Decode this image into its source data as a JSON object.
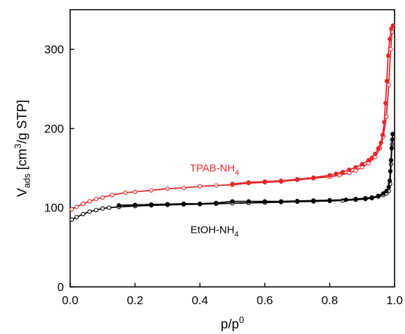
{
  "chart_data": {
    "type": "line",
    "title": "",
    "xlabel": {
      "base": "p/p",
      "sup": "0"
    },
    "ylabel": {
      "base": "V",
      "sub": "ads",
      "rest": " [cm",
      "sup": "3",
      "tail": "/g STP]"
    },
    "xlim": [
      0,
      1
    ],
    "ylim": [
      0,
      350
    ],
    "xticks": [
      0.0,
      0.2,
      0.4,
      0.6,
      0.8,
      1.0
    ],
    "xtick_labels": [
      "0.0",
      "0.2",
      "0.4",
      "0.6",
      "0.8",
      "1.0"
    ],
    "yticks": [
      0,
      100,
      200,
      300
    ],
    "ytick_labels": [
      "0",
      "100",
      "200",
      "300"
    ],
    "grid": false,
    "legend": "inline labels",
    "series": [
      {
        "name": {
          "base": "TPAB-NH",
          "sub": "4"
        },
        "color": "#e8262b",
        "label_at": [
          0.445,
          150
        ],
        "branches": [
          {
            "marker": "open",
            "points": [
              [
                0.005,
                98
              ],
              [
                0.02,
                101
              ],
              [
                0.04,
                105
              ],
              [
                0.06,
                108
              ],
              [
                0.08,
                111
              ],
              [
                0.1,
                113
              ],
              [
                0.13,
                116
              ],
              [
                0.17,
                119
              ],
              [
                0.2,
                120
              ],
              [
                0.25,
                122
              ],
              [
                0.3,
                124
              ],
              [
                0.35,
                125
              ],
              [
                0.4,
                127
              ],
              [
                0.45,
                128
              ],
              [
                0.5,
                129
              ],
              [
                0.55,
                131
              ],
              [
                0.6,
                132
              ],
              [
                0.65,
                133
              ],
              [
                0.7,
                135
              ],
              [
                0.75,
                137
              ],
              [
                0.8,
                139
              ],
              [
                0.83,
                141
              ],
              [
                0.86,
                144
              ],
              [
                0.88,
                147
              ],
              [
                0.9,
                151
              ],
              [
                0.92,
                156
              ],
              [
                0.94,
                164
              ],
              [
                0.955,
                175
              ],
              [
                0.965,
                190
              ],
              [
                0.975,
                215
              ],
              [
                0.982,
                255
              ],
              [
                0.988,
                300
              ],
              [
                0.992,
                322
              ],
              [
                0.995,
                330
              ]
            ]
          },
          {
            "marker": "filled",
            "points": [
              [
                0.995,
                330
              ],
              [
                0.99,
                326
              ],
              [
                0.985,
                313
              ],
              [
                0.98,
                292
              ],
              [
                0.976,
                260
              ],
              [
                0.972,
                232
              ],
              [
                0.968,
                208
              ],
              [
                0.963,
                192
              ],
              [
                0.958,
                182
              ],
              [
                0.95,
                175
              ],
              [
                0.94,
                168
              ],
              [
                0.93,
                163
              ],
              [
                0.92,
                160
              ],
              [
                0.9,
                155
              ],
              [
                0.88,
                151
              ],
              [
                0.86,
                148
              ],
              [
                0.84,
                145
              ],
              [
                0.82,
                143
              ],
              [
                0.8,
                141
              ],
              [
                0.75,
                138
              ],
              [
                0.7,
                136
              ],
              [
                0.65,
                134
              ],
              [
                0.6,
                133
              ],
              [
                0.55,
                132
              ],
              [
                0.5,
                130
              ]
            ]
          }
        ]
      },
      {
        "name": {
          "base": "EtOH-NH",
          "sub": "4"
        },
        "color": "#000000",
        "label_at": [
          0.445,
          72
        ],
        "branches": [
          {
            "marker": "open",
            "points": [
              [
                0.005,
                85
              ],
              [
                0.02,
                88
              ],
              [
                0.04,
                92
              ],
              [
                0.06,
                95
              ],
              [
                0.08,
                97
              ],
              [
                0.1,
                99
              ],
              [
                0.12,
                100
              ],
              [
                0.15,
                101
              ],
              [
                0.2,
                102
              ],
              [
                0.25,
                103
              ],
              [
                0.3,
                103.5
              ],
              [
                0.35,
                104
              ],
              [
                0.4,
                104.5
              ],
              [
                0.45,
                105
              ],
              [
                0.5,
                105.5
              ],
              [
                0.55,
                106
              ],
              [
                0.6,
                106.5
              ],
              [
                0.65,
                107
              ],
              [
                0.7,
                107.5
              ],
              [
                0.75,
                108
              ],
              [
                0.8,
                108.5
              ],
              [
                0.84,
                109
              ],
              [
                0.88,
                110
              ],
              [
                0.91,
                111
              ],
              [
                0.93,
                112
              ],
              [
                0.95,
                114
              ],
              [
                0.965,
                116
              ],
              [
                0.975,
                118
              ],
              [
                0.982,
                121
              ],
              [
                0.986,
                130
              ],
              [
                0.989,
                155
              ],
              [
                0.992,
                180
              ],
              [
                0.994,
                193
              ]
            ]
          },
          {
            "marker": "filled",
            "points": [
              [
                0.994,
                193
              ],
              [
                0.993,
                186
              ],
              [
                0.991,
                175
              ],
              [
                0.989,
                160
              ],
              [
                0.987,
                146
              ],
              [
                0.985,
                134
              ],
              [
                0.982,
                126
              ],
              [
                0.975,
                121
              ],
              [
                0.965,
                118
              ],
              [
                0.95,
                115
              ],
              [
                0.93,
                113
              ],
              [
                0.91,
                112
              ],
              [
                0.88,
                111
              ],
              [
                0.85,
                110
              ],
              [
                0.8,
                109.5
              ],
              [
                0.75,
                109
              ],
              [
                0.7,
                108.5
              ],
              [
                0.65,
                108
              ],
              [
                0.6,
                108
              ],
              [
                0.55,
                108
              ],
              [
                0.5,
                108
              ],
              [
                0.45,
                106
              ],
              [
                0.4,
                105
              ],
              [
                0.35,
                105
              ],
              [
                0.3,
                104.5
              ],
              [
                0.25,
                104
              ],
              [
                0.2,
                103.5
              ],
              [
                0.15,
                103
              ]
            ]
          }
        ]
      }
    ]
  }
}
